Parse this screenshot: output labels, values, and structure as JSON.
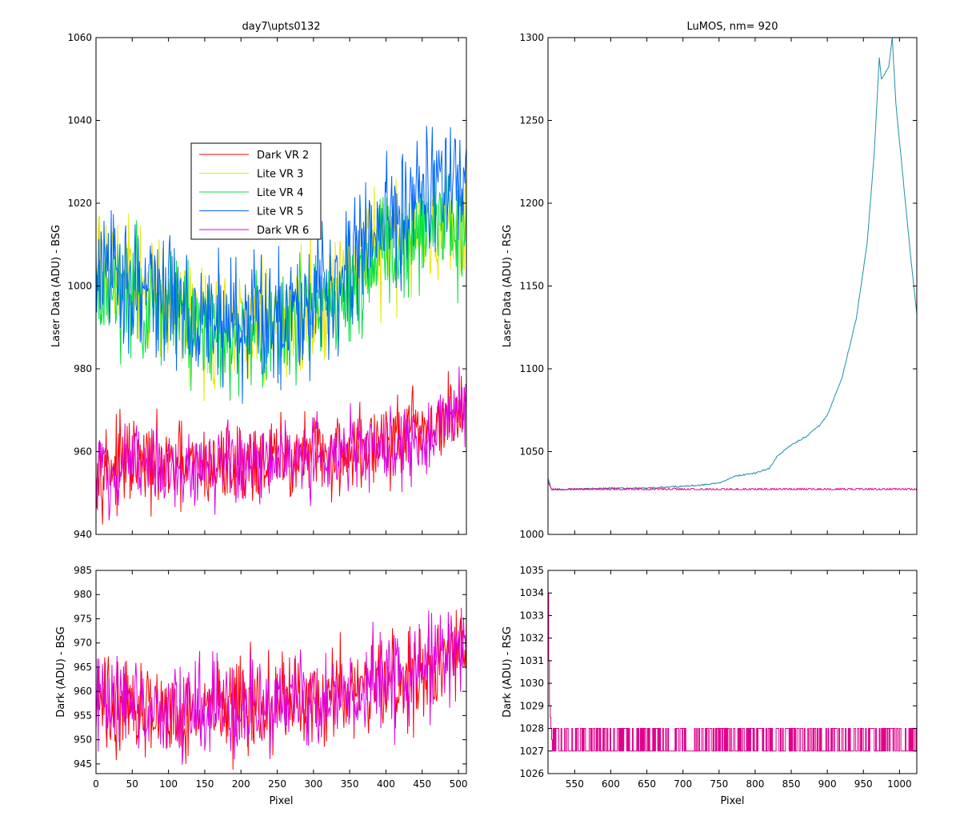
{
  "figure": {
    "background": "#ffffff"
  },
  "chart_data": [
    {
      "id": "bsg-laser",
      "type": "line",
      "title": "day7\\upts0132",
      "xlabel": "",
      "ylabel": "Laser Data (ADU) - BSG",
      "xlim": [
        0,
        511
      ],
      "ylim": [
        940,
        1060
      ],
      "xticks": [
        0,
        50,
        100,
        150,
        200,
        250,
        300,
        350,
        400,
        450,
        500
      ],
      "xtick_labels_shown": false,
      "yticks": [
        940,
        960,
        980,
        1000,
        1020,
        1040,
        1060
      ],
      "grid": false,
      "legend": {
        "placement": "upper-left-inside",
        "entries": [
          "Dark VR 2",
          "Lite VR 3",
          "Lite VR 4",
          "Lite VR 5",
          "Dark VR 6"
        ]
      },
      "noisy": true,
      "series": [
        {
          "name": "Dark VR 2",
          "color": "#ff0000",
          "amp": 5,
          "x": [
            0,
            50,
            100,
            150,
            200,
            250,
            300,
            350,
            400,
            450,
            511
          ],
          "values": [
            957,
            957,
            956,
            956,
            957,
            958,
            959,
            960,
            962,
            965,
            969
          ]
        },
        {
          "name": "Lite VR 3",
          "color": "#e6e600",
          "amp": 7,
          "x": [
            0,
            50,
            100,
            150,
            200,
            250,
            300,
            350,
            400,
            450,
            511
          ],
          "values": [
            1003,
            1001,
            996,
            992,
            990,
            991,
            995,
            1002,
            1010,
            1014,
            1016
          ]
        },
        {
          "name": "Lite VR 4",
          "color": "#00e040",
          "amp": 7,
          "x": [
            0,
            50,
            100,
            150,
            200,
            250,
            300,
            350,
            400,
            450,
            511
          ],
          "values": [
            1000,
            999,
            994,
            990,
            988,
            990,
            994,
            1001,
            1009,
            1013,
            1015
          ]
        },
        {
          "name": "Lite VR 5",
          "color": "#0064ff",
          "amp": 8,
          "x": [
            0,
            50,
            100,
            150,
            200,
            250,
            300,
            350,
            400,
            450,
            511
          ],
          "values": [
            1003,
            1001,
            997,
            993,
            991,
            993,
            998,
            1005,
            1016,
            1024,
            1026
          ]
        },
        {
          "name": "Dark VR 6",
          "color": "#e000e0",
          "amp": 5,
          "x": [
            0,
            50,
            100,
            150,
            200,
            250,
            300,
            350,
            400,
            450,
            511
          ],
          "values": [
            956,
            957,
            956,
            956,
            957,
            958,
            959,
            960,
            962,
            964,
            970
          ]
        }
      ]
    },
    {
      "id": "rsg-laser",
      "type": "line",
      "title": "LuMOS, nm= 920",
      "xlabel": "",
      "ylabel": "Laser Data (ADU) - RSG",
      "xlim": [
        513,
        1024
      ],
      "ylim": [
        1000,
        1300
      ],
      "xticks": [
        550,
        600,
        650,
        700,
        750,
        800,
        850,
        900,
        950,
        1000
      ],
      "xtick_labels_shown": false,
      "yticks": [
        1000,
        1050,
        1100,
        1150,
        1200,
        1250,
        1300
      ],
      "grid": false,
      "noisy": false,
      "series": [
        {
          "name": "Lite VR 5",
          "color": "#1f8fa8",
          "amp": 0,
          "x": [
            513,
            518,
            530,
            600,
            650,
            700,
            730,
            750,
            770,
            800,
            820,
            830,
            850,
            870,
            890,
            900,
            920,
            940,
            955,
            965,
            972,
            975,
            985,
            990,
            995,
            1005,
            1015,
            1024
          ],
          "values": [
            1034,
            1027,
            1027,
            1028,
            1028,
            1029,
            1030,
            1031,
            1035,
            1037,
            1040,
            1047,
            1054,
            1059,
            1066,
            1072,
            1094,
            1130,
            1175,
            1230,
            1288,
            1275,
            1282,
            1300,
            1260,
            1215,
            1170,
            1133
          ]
        },
        {
          "name": "Dark VR 6",
          "color": "#e0008c",
          "amp": 0,
          "x": [
            513,
            518,
            1024
          ],
          "values": [
            1032,
            1027,
            1027
          ]
        }
      ]
    },
    {
      "id": "bsg-dark",
      "type": "line",
      "title": "",
      "xlabel": "Pixel",
      "ylabel": "Dark (ADU) - BSG",
      "xlim": [
        0,
        511
      ],
      "ylim": [
        943,
        985
      ],
      "xticks": [
        0,
        50,
        100,
        150,
        200,
        250,
        300,
        350,
        400,
        450,
        500
      ],
      "xtick_labels_shown": true,
      "yticks": [
        945,
        950,
        955,
        960,
        965,
        970,
        975,
        980,
        985
      ],
      "grid": false,
      "noisy": true,
      "series": [
        {
          "name": "Dark VR 2",
          "color": "#ff0000",
          "amp": 5,
          "x": [
            0,
            50,
            100,
            150,
            200,
            250,
            300,
            350,
            400,
            450,
            511
          ],
          "values": [
            957,
            957,
            956,
            956,
            957,
            958,
            959,
            960,
            962,
            965,
            969
          ]
        },
        {
          "name": "Dark VR 6",
          "color": "#e000e0",
          "amp": 5,
          "x": [
            0,
            50,
            100,
            150,
            200,
            250,
            300,
            350,
            400,
            450,
            511
          ],
          "values": [
            956,
            957,
            956,
            956,
            957,
            958,
            959,
            960,
            962,
            964,
            970
          ]
        }
      ]
    },
    {
      "id": "rsg-dark",
      "type": "line",
      "title": "",
      "xlabel": "Pixel",
      "ylabel": "Dark (ADU) - RSG",
      "xlim": [
        513,
        1024
      ],
      "ylim": [
        1026,
        1035
      ],
      "xticks": [
        550,
        600,
        650,
        700,
        750,
        800,
        850,
        900,
        950,
        1000
      ],
      "xtick_labels_shown": true,
      "yticks": [
        1026,
        1027,
        1028,
        1029,
        1030,
        1031,
        1032,
        1033,
        1034,
        1035
      ],
      "grid": false,
      "noisy": false,
      "series": [
        {
          "name": "Dark VR 6",
          "color": "#e0008c",
          "amp": 0,
          "x": [
            513,
            514,
            515,
            516,
            517,
            518,
            519,
            1024
          ],
          "values": [
            1034,
            1031,
            1029,
            1028.5,
            1028,
            1027.5,
            1027,
            1027
          ]
        }
      ]
    }
  ]
}
